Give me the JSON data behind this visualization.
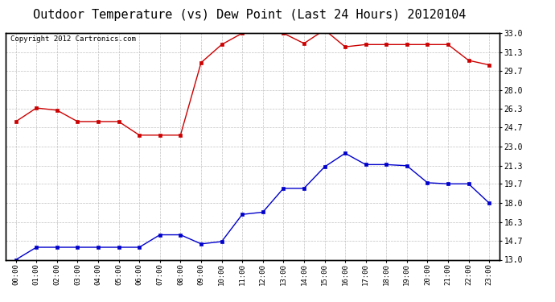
{
  "title": "Outdoor Temperature (vs) Dew Point (Last 24 Hours) 20120104",
  "copyright_text": "Copyright 2012 Cartronics.com",
  "x_labels": [
    "00:00",
    "01:00",
    "02:00",
    "03:00",
    "04:00",
    "05:00",
    "06:00",
    "07:00",
    "08:00",
    "09:00",
    "10:00",
    "11:00",
    "12:00",
    "13:00",
    "14:00",
    "15:00",
    "16:00",
    "17:00",
    "18:00",
    "19:00",
    "20:00",
    "21:00",
    "22:00",
    "23:00"
  ],
  "temp_data": [
    25.2,
    26.4,
    26.2,
    25.2,
    25.2,
    25.2,
    24.0,
    24.0,
    24.0,
    30.4,
    32.0,
    33.0,
    33.3,
    33.0,
    32.1,
    33.3,
    31.8,
    32.0,
    32.0,
    32.0,
    32.0,
    32.0,
    30.6,
    30.2
  ],
  "dew_data": [
    13.0,
    14.1,
    14.1,
    14.1,
    14.1,
    14.1,
    14.1,
    15.2,
    15.2,
    14.4,
    14.6,
    17.0,
    17.2,
    19.3,
    19.3,
    21.2,
    22.4,
    21.4,
    21.4,
    21.3,
    19.8,
    19.7,
    19.7,
    18.0
  ],
  "temp_color": "#cc0000",
  "dew_color": "#0000cc",
  "bg_color": "#ffffff",
  "grid_color": "#bbbbbb",
  "ymin": 13.0,
  "ymax": 33.0,
  "yticks": [
    13.0,
    14.7,
    16.3,
    18.0,
    19.7,
    21.3,
    23.0,
    24.7,
    26.3,
    28.0,
    29.7,
    31.3,
    33.0
  ],
  "title_fontsize": 11,
  "copyright_fontsize": 6.5,
  "tick_fontsize": 7,
  "xtick_fontsize": 6.5
}
